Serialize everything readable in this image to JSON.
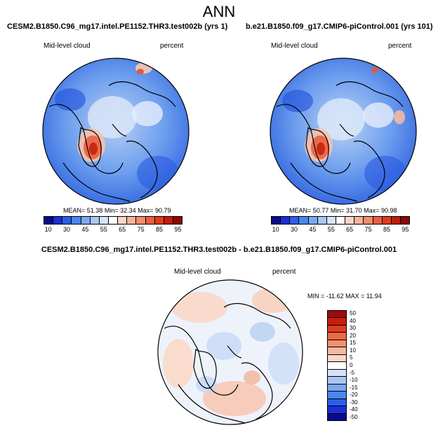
{
  "figure": {
    "title": "ANN"
  },
  "panel_left": {
    "case": "CESM2.B1850.C96_mg17.intel.PE1152.THR3.test002b (yrs 1)",
    "variable": "Mid-level cloud",
    "units": "percent",
    "mean_label": "MEAN=",
    "mean": "51.38",
    "min_label": "Min=",
    "min": "32.34",
    "max_label": "Max=",
    "max": "90.79"
  },
  "panel_right": {
    "case": "b.e21.B1850.f09_g17.CMIP6-piControl.001 (yrs 101)",
    "variable": "Mid-level cloud",
    "units": "percent",
    "mean_label": "MEAN=",
    "mean": "50.77",
    "min_label": "Min=",
    "min": "31.70",
    "max_label": "Max=",
    "max": "90.98"
  },
  "panel_diff": {
    "case": "CESM2.B1850.C96_mg17.intel.PE1152.THR3.test002b - b.e21.B1850.f09_g17.CMIP6-piControl.001",
    "variable": "Mid-level cloud",
    "units": "percent",
    "min_label": "MIN =",
    "min": "-11.62",
    "max_label": "MAX =",
    "max": "11.94"
  },
  "colorbar_main": {
    "ticks": [
      "10",
      "30",
      "45",
      "55",
      "65",
      "75",
      "85",
      "95"
    ],
    "colors": [
      "#0a0a8c",
      "#1a2fd6",
      "#2d5ee8",
      "#4a86f0",
      "#7aa9f2",
      "#aac6f4",
      "#d6e4f8",
      "#ffffff",
      "#fbd6c6",
      "#f7b49c",
      "#f38d6e",
      "#ec6040",
      "#e03c1e",
      "#c41a0a",
      "#8c0808"
    ]
  },
  "colorbar_diff": {
    "ticks": [
      "50",
      "40",
      "30",
      "20",
      "15",
      "10",
      "5",
      "0",
      "-5",
      "-10",
      "-15",
      "-20",
      "-30",
      "-40",
      "-50"
    ],
    "colors": [
      "#a00a0a",
      "#c81e0c",
      "#e03c1e",
      "#ee6842",
      "#f59070",
      "#f8b8a0",
      "#fbd8c8",
      "#ffffff",
      "#d6e4f8",
      "#aac6f4",
      "#7aa9f2",
      "#4a86f0",
      "#2d5ee8",
      "#1a2fd6",
      "#0a0a8c"
    ]
  }
}
